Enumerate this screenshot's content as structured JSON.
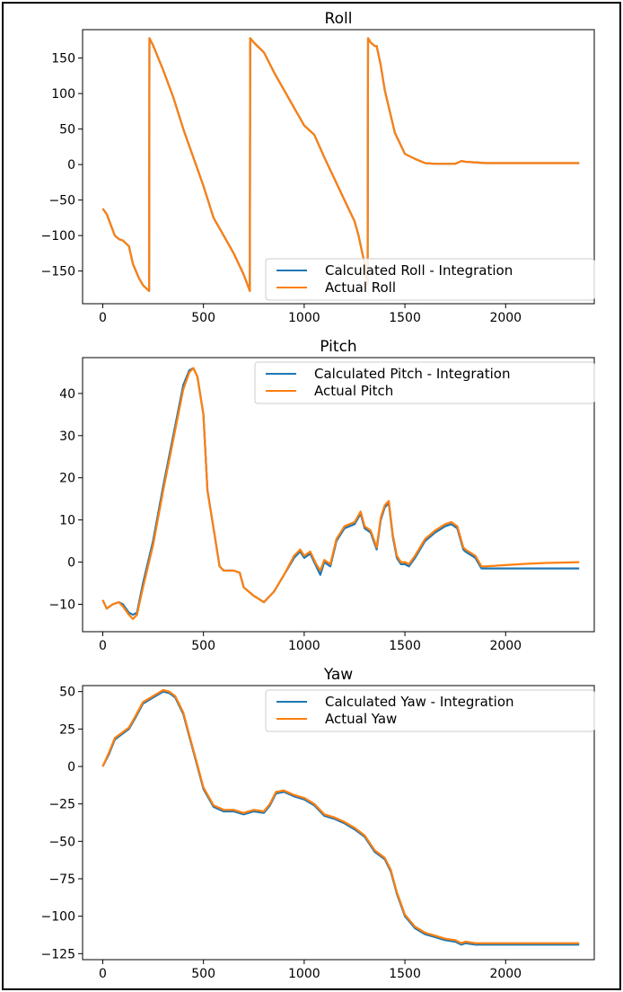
{
  "figure": {
    "background": "#ffffff"
  },
  "colors": {
    "calculated": "#1f77b4",
    "actual": "#ff7f0e"
  },
  "chart_data": [
    {
      "type": "line",
      "title": "Roll",
      "xlabel": "",
      "ylabel": "",
      "xlim": [
        -100,
        2440
      ],
      "ylim": [
        -196,
        190
      ],
      "xticks": [
        0,
        500,
        1000,
        1500,
        2000
      ],
      "yticks": [
        -150,
        -100,
        -50,
        0,
        50,
        100,
        150
      ],
      "xtick_labels": [
        "0",
        "500",
        "1000",
        "1500",
        "2000"
      ],
      "ytick_labels": [
        "−150",
        "−100",
        "−50",
        "0",
        "50",
        "100",
        "150"
      ],
      "legend": {
        "placement": "lower-right"
      },
      "series": [
        {
          "name": "Calculated Roll - Integration",
          "color": "#1f77b4",
          "x": [
            0,
            20,
            40,
            60,
            80,
            100,
            130,
            150,
            180,
            200,
            230,
            232,
            250,
            300,
            350,
            400,
            450,
            500,
            550,
            600,
            650,
            700,
            730,
            732,
            750,
            800,
            850,
            900,
            950,
            1000,
            1050,
            1100,
            1150,
            1200,
            1250,
            1270,
            1300,
            1315,
            1317,
            1330,
            1350,
            1360,
            1380,
            1400,
            1450,
            1500,
            1550,
            1600,
            1650,
            1700,
            1750,
            1780,
            1800,
            1900,
            2000,
            2100,
            2200,
            2300,
            2365
          ],
          "y": [
            -62,
            -70,
            -85,
            -100,
            -105,
            -107,
            -115,
            -140,
            -160,
            -170,
            -178,
            178,
            168,
            133,
            95,
            50,
            10,
            -30,
            -75,
            -100,
            -125,
            -155,
            -178,
            178,
            172,
            158,
            130,
            105,
            80,
            55,
            42,
            10,
            -20,
            -50,
            -80,
            -100,
            -140,
            -170,
            178,
            172,
            167,
            167,
            140,
            105,
            45,
            15,
            8,
            2,
            1,
            1,
            1,
            5,
            4,
            2,
            2,
            2,
            2,
            2,
            2
          ]
        },
        {
          "name": "Actual Roll",
          "color": "#ff7f0e",
          "x": [
            0,
            20,
            40,
            60,
            80,
            100,
            130,
            150,
            180,
            200,
            230,
            232,
            250,
            300,
            350,
            400,
            450,
            500,
            550,
            600,
            650,
            700,
            730,
            732,
            750,
            800,
            850,
            900,
            950,
            1000,
            1050,
            1100,
            1150,
            1200,
            1250,
            1270,
            1300,
            1315,
            1317,
            1330,
            1350,
            1360,
            1380,
            1400,
            1450,
            1500,
            1550,
            1600,
            1650,
            1700,
            1750,
            1780,
            1800,
            1900,
            2000,
            2100,
            2200,
            2300,
            2365
          ],
          "y": [
            -62,
            -70,
            -85,
            -100,
            -105,
            -107,
            -115,
            -140,
            -160,
            -170,
            -178,
            178,
            168,
            133,
            95,
            50,
            10,
            -30,
            -75,
            -100,
            -125,
            -155,
            -178,
            178,
            172,
            158,
            130,
            105,
            80,
            55,
            42,
            10,
            -20,
            -50,
            -80,
            -100,
            -140,
            -170,
            178,
            172,
            167,
            167,
            140,
            105,
            45,
            15,
            8,
            2,
            1,
            1,
            1,
            5,
            4,
            2,
            2,
            2,
            2,
            2,
            2
          ]
        }
      ]
    },
    {
      "type": "line",
      "title": "Pitch",
      "xlabel": "",
      "ylabel": "",
      "xlim": [
        -100,
        2440
      ],
      "ylim": [
        -16.5,
        48.5
      ],
      "xticks": [
        0,
        500,
        1000,
        1500,
        2000
      ],
      "yticks": [
        -10,
        0,
        10,
        20,
        30,
        40
      ],
      "xtick_labels": [
        "0",
        "500",
        "1000",
        "1500",
        "2000"
      ],
      "ytick_labels": [
        "−10",
        "0",
        "10",
        "20",
        "30",
        "40"
      ],
      "legend": {
        "placement": "upper-right"
      },
      "series": [
        {
          "name": "Calculated Pitch - Integration",
          "color": "#1f77b4",
          "x": [
            0,
            20,
            50,
            80,
            100,
            130,
            150,
            170,
            200,
            250,
            300,
            350,
            400,
            430,
            450,
            470,
            500,
            520,
            550,
            580,
            600,
            650,
            680,
            700,
            750,
            800,
            850,
            900,
            950,
            980,
            1000,
            1030,
            1060,
            1080,
            1100,
            1130,
            1160,
            1200,
            1250,
            1280,
            1300,
            1330,
            1360,
            1380,
            1400,
            1420,
            1440,
            1460,
            1480,
            1500,
            1520,
            1550,
            1600,
            1650,
            1700,
            1730,
            1760,
            1790,
            1800,
            1850,
            1880,
            1900,
            2000,
            2100,
            2200,
            2300,
            2365
          ],
          "y": [
            -9,
            -11,
            -10,
            -9.5,
            -10,
            -12,
            -12.5,
            -12,
            -5,
            5,
            18,
            30,
            42,
            45.5,
            46,
            44,
            35,
            17,
            8,
            -1,
            -2,
            -2,
            -2.5,
            -6,
            -8,
            -9.5,
            -7,
            -3,
            1,
            2.5,
            1,
            2,
            -1,
            -3,
            0,
            -1,
            5,
            8,
            9,
            11.5,
            8,
            7,
            3,
            10,
            13,
            14,
            6,
            1,
            -0.5,
            -0.5,
            -1,
            1,
            5,
            7,
            8.5,
            9,
            8,
            3,
            2.5,
            1,
            -1.5,
            -1.5,
            -1.5,
            -1.5,
            -1.5,
            -1.5,
            -1.5
          ]
        },
        {
          "name": "Actual Pitch",
          "color": "#ff7f0e",
          "x": [
            0,
            20,
            50,
            80,
            100,
            130,
            150,
            170,
            200,
            250,
            300,
            350,
            400,
            430,
            450,
            470,
            500,
            520,
            550,
            580,
            600,
            650,
            680,
            700,
            750,
            800,
            850,
            900,
            950,
            980,
            1000,
            1030,
            1060,
            1080,
            1100,
            1130,
            1160,
            1200,
            1250,
            1280,
            1300,
            1330,
            1360,
            1380,
            1400,
            1420,
            1440,
            1460,
            1480,
            1500,
            1520,
            1550,
            1600,
            1650,
            1700,
            1730,
            1760,
            1790,
            1800,
            1850,
            1880,
            1900,
            2000,
            2100,
            2200,
            2300,
            2365
          ],
          "y": [
            -9,
            -11,
            -10,
            -9.5,
            -10.5,
            -12.5,
            -13.5,
            -12.5,
            -6,
            4,
            17,
            29,
            41,
            45,
            46,
            44,
            35,
            17,
            8,
            -1,
            -2,
            -2,
            -2.5,
            -6,
            -8,
            -9.5,
            -7,
            -3,
            1.5,
            3,
            1.5,
            2.5,
            -0.5,
            -2,
            0.5,
            -0.5,
            5.5,
            8.5,
            9.5,
            12,
            8.5,
            7.5,
            3.5,
            10.5,
            13.5,
            14.5,
            6.5,
            1.5,
            0,
            0,
            -0.5,
            1.5,
            5.5,
            7.5,
            9,
            9.5,
            8.5,
            3.5,
            3,
            1.5,
            -1,
            -1,
            -0.7,
            -0.4,
            -0.2,
            -0.1,
            0
          ]
        }
      ]
    },
    {
      "type": "line",
      "title": "Yaw",
      "xlabel": "",
      "ylabel": "",
      "xlim": [
        -100,
        2440
      ],
      "ylim": [
        -129,
        54
      ],
      "xticks": [
        0,
        500,
        1000,
        1500,
        2000
      ],
      "yticks": [
        -125,
        -100,
        -75,
        -50,
        -25,
        0,
        25,
        50
      ],
      "xtick_labels": [
        "0",
        "500",
        "1000",
        "1500",
        "2000"
      ],
      "ytick_labels": [
        "−125",
        "−100",
        "−75",
        "−50",
        "−25",
        "0",
        "25",
        "50"
      ],
      "legend": {
        "placement": "upper-right"
      },
      "series": [
        {
          "name": "Calculated Yaw - Integration",
          "color": "#1f77b4",
          "x": [
            0,
            30,
            60,
            100,
            130,
            160,
            200,
            250,
            300,
            330,
            360,
            400,
            430,
            460,
            500,
            550,
            600,
            650,
            700,
            750,
            800,
            830,
            860,
            900,
            950,
            1000,
            1050,
            1100,
            1150,
            1200,
            1250,
            1300,
            1350,
            1400,
            1430,
            1460,
            1500,
            1550,
            1600,
            1650,
            1700,
            1750,
            1780,
            1800,
            1850,
            1900,
            2000,
            2100,
            2200,
            2300,
            2365
          ],
          "y": [
            0,
            8,
            18,
            22,
            25,
            32,
            42,
            46,
            50,
            49,
            46,
            35,
            20,
            5,
            -15,
            -27,
            -30,
            -30,
            -32,
            -30,
            -31,
            -26,
            -18,
            -17,
            -20,
            -22,
            -26,
            -33,
            -35,
            -38,
            -42,
            -47,
            -57,
            -62,
            -70,
            -85,
            -100,
            -108,
            -112,
            -114,
            -116,
            -117,
            -119,
            -118,
            -119,
            -119,
            -119,
            -119,
            -119,
            -119,
            -119
          ]
        },
        {
          "name": "Actual Yaw",
          "color": "#ff7f0e",
          "x": [
            0,
            30,
            60,
            100,
            130,
            160,
            200,
            250,
            300,
            330,
            360,
            400,
            430,
            460,
            500,
            550,
            600,
            650,
            700,
            750,
            800,
            830,
            860,
            900,
            950,
            1000,
            1050,
            1100,
            1150,
            1200,
            1250,
            1300,
            1350,
            1400,
            1430,
            1460,
            1500,
            1550,
            1600,
            1650,
            1700,
            1750,
            1780,
            1800,
            1850,
            1900,
            2000,
            2100,
            2200,
            2300,
            2365
          ],
          "y": [
            0,
            9,
            19,
            23,
            26,
            33,
            43,
            47,
            51,
            50,
            47,
            36,
            21,
            6,
            -14,
            -26,
            -29,
            -29,
            -31,
            -29,
            -30,
            -25,
            -17,
            -16,
            -19,
            -21,
            -25,
            -32,
            -34,
            -37,
            -41,
            -46,
            -56,
            -61,
            -69,
            -84,
            -99,
            -107,
            -111,
            -113,
            -115,
            -116,
            -118,
            -117,
            -118,
            -118,
            -118,
            -118,
            -118,
            -118,
            -118
          ]
        }
      ]
    }
  ]
}
